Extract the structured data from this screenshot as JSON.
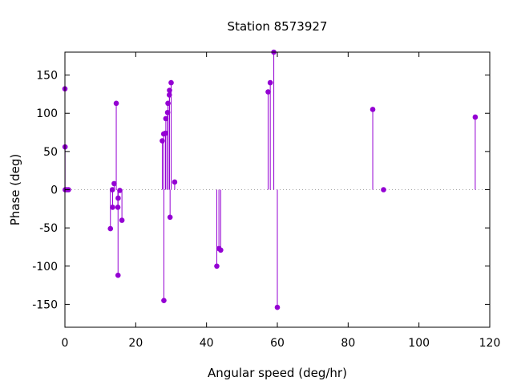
{
  "chart_data": {
    "type": "scatter",
    "style": "impulses with points",
    "title": "Station 8573927",
    "xlabel": "Angular speed (deg/hr)",
    "ylabel": "Phase (deg)",
    "xlim": [
      0,
      120
    ],
    "ylim": [
      -180,
      180
    ],
    "xticks": [
      0,
      20,
      40,
      60,
      80,
      100,
      120
    ],
    "yticks": [
      -150,
      -100,
      -50,
      0,
      50,
      100,
      150
    ],
    "grid": false,
    "zero_line": "dotted",
    "series_color": "#9400d3",
    "points": [
      {
        "x": 0.0,
        "y": 132
      },
      {
        "x": 0.04,
        "y": 56
      },
      {
        "x": 0.08,
        "y": 0
      },
      {
        "x": 0.5,
        "y": 0
      },
      {
        "x": 1.0,
        "y": 0
      },
      {
        "x": 12.85,
        "y": -51
      },
      {
        "x": 13.4,
        "y": 0
      },
      {
        "x": 13.47,
        "y": -23
      },
      {
        "x": 13.9,
        "y": 8
      },
      {
        "x": 14.5,
        "y": 113
      },
      {
        "x": 14.96,
        "y": -23
      },
      {
        "x": 15.0,
        "y": -112
      },
      {
        "x": 15.04,
        "y": -11
      },
      {
        "x": 15.5,
        "y": -1
      },
      {
        "x": 16.1,
        "y": -40
      },
      {
        "x": 27.5,
        "y": 64
      },
      {
        "x": 27.9,
        "y": 73
      },
      {
        "x": 27.95,
        "y": -145
      },
      {
        "x": 28.4,
        "y": 74
      },
      {
        "x": 28.5,
        "y": 93
      },
      {
        "x": 29.0,
        "y": 101
      },
      {
        "x": 29.1,
        "y": 113
      },
      {
        "x": 29.5,
        "y": 124
      },
      {
        "x": 29.55,
        "y": 130
      },
      {
        "x": 29.7,
        "y": -36
      },
      {
        "x": 30.0,
        "y": 140
      },
      {
        "x": 31.0,
        "y": 10
      },
      {
        "x": 42.9,
        "y": -100
      },
      {
        "x": 43.5,
        "y": -77
      },
      {
        "x": 44.0,
        "y": -79
      },
      {
        "x": 57.4,
        "y": 128
      },
      {
        "x": 58.0,
        "y": 140
      },
      {
        "x": 59.0,
        "y": 181
      },
      {
        "x": 60.0,
        "y": -154
      },
      {
        "x": 86.95,
        "y": 105
      },
      {
        "x": 90.0,
        "y": 0
      },
      {
        "x": 115.9,
        "y": 95
      }
    ]
  }
}
